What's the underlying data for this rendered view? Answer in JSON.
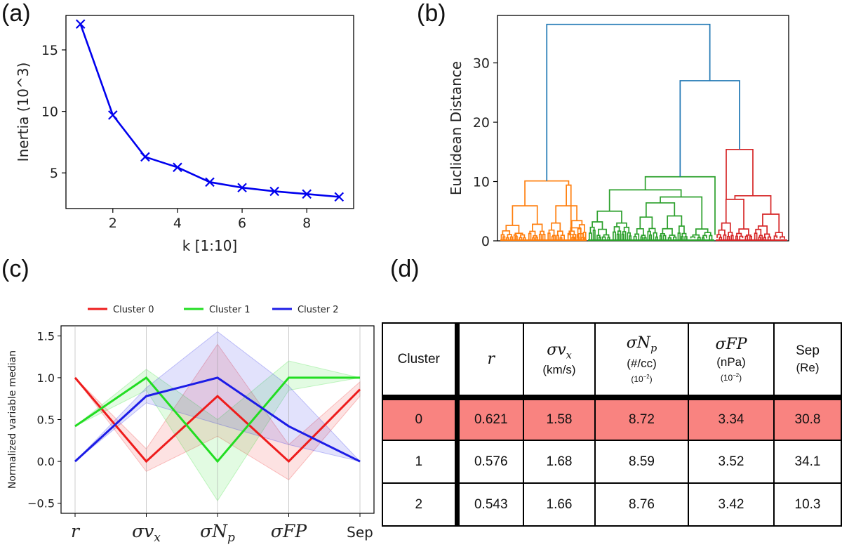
{
  "panel_labels": [
    "(a)",
    "(b)",
    "(c)",
    "(d)"
  ],
  "chart_data": [
    {
      "id": "a",
      "type": "line",
      "title": "",
      "xlabel": "k [1:10]",
      "ylabel": "Inertia (10^3)",
      "x": [
        1,
        2,
        3,
        4,
        5,
        6,
        7,
        8,
        9
      ],
      "values": [
        17.1,
        9.7,
        6.3,
        5.45,
        4.25,
        3.8,
        3.5,
        3.28,
        3.05
      ],
      "xlim": [
        0.55,
        9.45
      ],
      "ylim": [
        2.1,
        17.8
      ],
      "xticks": [
        2,
        4,
        6,
        8
      ],
      "yticks": [
        5,
        10,
        15
      ],
      "marker": "x",
      "color": "#0000ee"
    },
    {
      "id": "b",
      "type": "dendrogram",
      "ylabel": "Euclidean Distance",
      "ylim": [
        0,
        38
      ],
      "yticks": [
        0,
        10,
        20,
        30
      ],
      "link_color": "#1f77b4",
      "link_heights": {
        "root": 36.5,
        "right_merge": 27.0
      },
      "clusters": [
        {
          "name": "orange",
          "color": "#ff7f0e",
          "height": 10.1
        },
        {
          "name": "green",
          "color": "#2ca02c",
          "height": 10.8
        },
        {
          "name": "red",
          "color": "#d62728",
          "height": 15.4
        }
      ]
    },
    {
      "id": "c",
      "type": "line",
      "ylabel": "Normalized variable median",
      "categories": [
        "r",
        "σv_x",
        "σN_p",
        "σFP",
        "Sep"
      ],
      "ylim": [
        -0.62,
        1.62
      ],
      "yticks": [
        -0.5,
        0.0,
        0.5,
        1.0,
        1.5
      ],
      "ytick_labels": [
        "−0.5",
        "0.0",
        "0.5",
        "1.0",
        "1.5"
      ],
      "legend_position": "top",
      "series": [
        {
          "name": "Cluster 0",
          "color": "#ee1c1c",
          "values": [
            1.0,
            0.0,
            0.78,
            0.0,
            0.86
          ],
          "lower": [
            1.0,
            -0.12,
            0.3,
            -0.22,
            0.78
          ],
          "upper": [
            1.0,
            0.15,
            1.4,
            0.2,
            0.95
          ]
        },
        {
          "name": "Cluster 1",
          "color": "#22dd22",
          "values": [
            0.42,
            1.0,
            0.0,
            1.0,
            1.0
          ],
          "lower": [
            0.42,
            0.85,
            -0.47,
            0.85,
            1.0
          ],
          "upper": [
            0.42,
            1.1,
            0.5,
            1.2,
            1.0
          ]
        },
        {
          "name": "Cluster 2",
          "color": "#1c1ce6",
          "values": [
            0.0,
            0.78,
            1.0,
            0.42,
            0.0
          ],
          "lower": [
            0.0,
            0.7,
            0.45,
            0.2,
            0.0
          ],
          "upper": [
            0.0,
            0.88,
            1.55,
            0.9,
            0.0
          ]
        }
      ]
    }
  ],
  "table": {
    "header": {
      "cluster": "Cluster",
      "r": "r",
      "svx_sym": "σv",
      "svx_sub": "x",
      "svx_unit": "(km/s)",
      "snp_sym": "σN",
      "snp_sub": "p",
      "snp_unit": "(#/cc)",
      "snp_scale_base": "(10",
      "snp_scale_exp": "−2",
      "snp_scale_close": ")",
      "sfp_sym": "σFP",
      "sfp_unit": "(nPa)",
      "sfp_scale_base": "(10",
      "sfp_scale_exp": "−2",
      "sfp_scale_close": ")",
      "sep": "Sep",
      "sep_unit": "(Re)"
    },
    "rows": [
      {
        "cluster": "0",
        "r": "0.621",
        "svx": "1.58",
        "snp": "8.72",
        "sfp": "3.34",
        "sep": "30.8",
        "highlight_color": "#f98380"
      },
      {
        "cluster": "1",
        "r": "0.576",
        "svx": "1.68",
        "snp": "8.59",
        "sfp": "3.52",
        "sep": "34.1"
      },
      {
        "cluster": "2",
        "r": "0.543",
        "svx": "1.66",
        "snp": "8.76",
        "sfp": "3.42",
        "sep": "10.3"
      }
    ]
  }
}
